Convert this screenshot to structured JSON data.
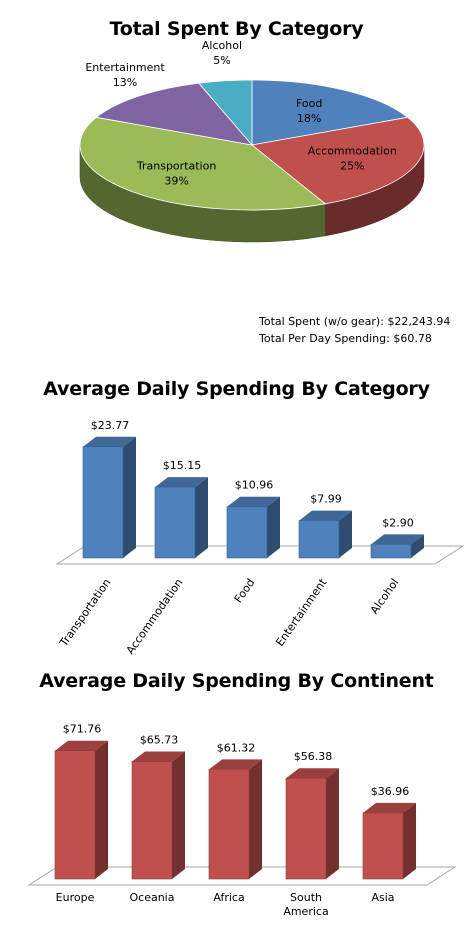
{
  "chart_data": [
    {
      "type": "pie",
      "title": "Total Spent By Category",
      "slices": [
        {
          "label": "Food",
          "value": 18,
          "pct_label": "18%",
          "color": "#4f81bd"
        },
        {
          "label": "Accommodation",
          "value": 25,
          "pct_label": "25%",
          "color": "#c0504d"
        },
        {
          "label": "Transportation",
          "value": 39,
          "pct_label": "39%",
          "color": "#9bbb59"
        },
        {
          "label": "Entertainment",
          "value": 13,
          "pct_label": "13%",
          "color": "#8064a2"
        },
        {
          "label": "Alcohol",
          "value": 5,
          "pct_label": "5%",
          "color": "#4bacc6"
        }
      ],
      "summary": {
        "total_label": "Total Spent (w/o gear):",
        "total_value": "$22,243.94",
        "per_day_label": "Total  Per Day Spending:",
        "per_day_value": "$60.78"
      }
    },
    {
      "type": "bar",
      "title": "Average Daily Spending By Category",
      "categories": [
        "Transportation",
        "Accommodation",
        "Food",
        "Entertainment",
        "Alcohol"
      ],
      "values": [
        23.77,
        15.15,
        10.96,
        7.99,
        2.9
      ],
      "value_labels": [
        "$23.77",
        "$15.15",
        "$10.96",
        "$7.99",
        "$2.90"
      ],
      "ylim": [
        0,
        25
      ],
      "grid": false,
      "color": "#4f81bd"
    },
    {
      "type": "bar",
      "title": "Average Daily Spending By Continent",
      "categories": [
        "Europe",
        "Oceania",
        "Africa",
        "South America",
        "Asia"
      ],
      "values": [
        71.76,
        65.73,
        61.32,
        56.38,
        36.96
      ],
      "value_labels": [
        "$71.76",
        "$65.73",
        "$61.32",
        "$56.38",
        "$36.96"
      ],
      "ylim": [
        0,
        80
      ],
      "grid": false,
      "color": "#c0504d"
    }
  ]
}
